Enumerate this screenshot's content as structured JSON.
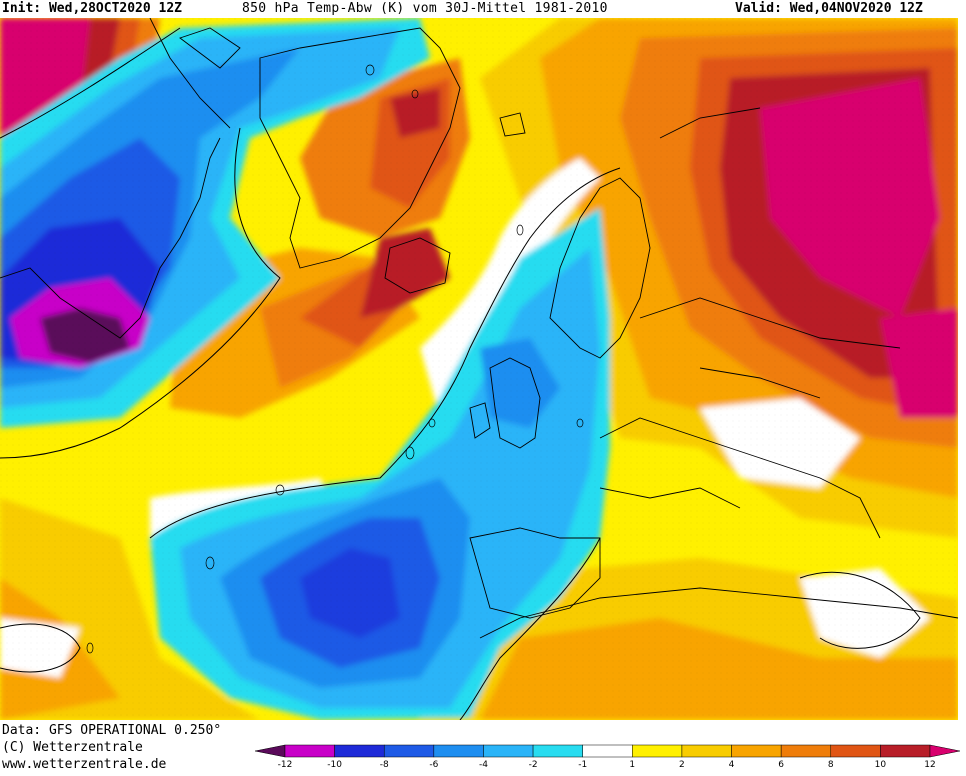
{
  "header": {
    "init_label": "Init: Wed,28OCT2020 12Z",
    "title": "850 hPa Temp-Abw (K) vom 30J-Mittel 1981-2010",
    "valid_label": "Valid: Wed,04NOV2020 12Z"
  },
  "footer": {
    "data_source": "Data: GFS OPERATIONAL 0.250°",
    "copyright": "(C) Wetterzentrale",
    "website": "www.wetterzentrale.de"
  },
  "legend": {
    "ticks": [
      "-12",
      "-10",
      "-8",
      "-6",
      "-4",
      "-2",
      "-1",
      "1",
      "2",
      "4",
      "6",
      "8",
      "10",
      "12"
    ],
    "colors": [
      "#5a0a5a",
      "#c800c8",
      "#1e2ad8",
      "#1e5ae6",
      "#1e8ef0",
      "#2ab4f8",
      "#28dcf0",
      "#ffffff",
      "#fff000",
      "#f8cc00",
      "#f8a400",
      "#ef7d0a",
      "#e05514",
      "#b81e28",
      "#d8006e"
    ]
  },
  "map_palette": {
    "deep_purple": "#5a0a5a",
    "magenta": "#c800c8",
    "blue_dark": "#1e2ad8",
    "blue": "#1e5ae6",
    "blue_mid": "#1e8ef0",
    "blue_light": "#2ab4f8",
    "cyan": "#28dcf0",
    "white": "#ffffff",
    "yellow": "#fff000",
    "gold": "#f8cc00",
    "orange_light": "#f8a400",
    "orange": "#ef7d0a",
    "orange_dark": "#e05514",
    "red": "#b81e28",
    "crimson": "#d8006e"
  }
}
